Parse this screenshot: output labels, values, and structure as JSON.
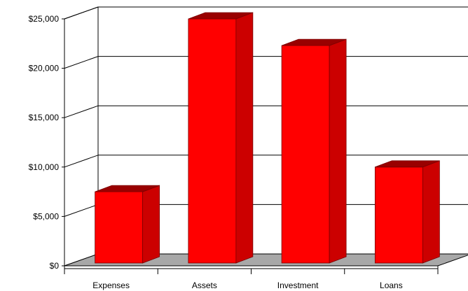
{
  "chart_data": {
    "type": "bar",
    "title": "",
    "xlabel": "",
    "ylabel": "",
    "categories": [
      "Expenses",
      "Assets",
      "Investment",
      "Loans"
    ],
    "values": [
      7500,
      25000,
      22300,
      10000
    ],
    "ylim": [
      0,
      25000
    ],
    "yticks": [
      0,
      5000,
      10000,
      15000,
      20000,
      25000
    ],
    "ytick_labels": [
      "$0",
      "$5,000",
      "$10,000",
      "$15,000",
      "$20,000",
      "$25,000"
    ],
    "grid": true,
    "legend": "none",
    "style": "3d",
    "colors": {
      "bar_front": "#ff0000",
      "bar_side": "#cc0000",
      "bar_top": "#990000",
      "floor": "#a8a8a8",
      "grid": "#000000"
    }
  }
}
